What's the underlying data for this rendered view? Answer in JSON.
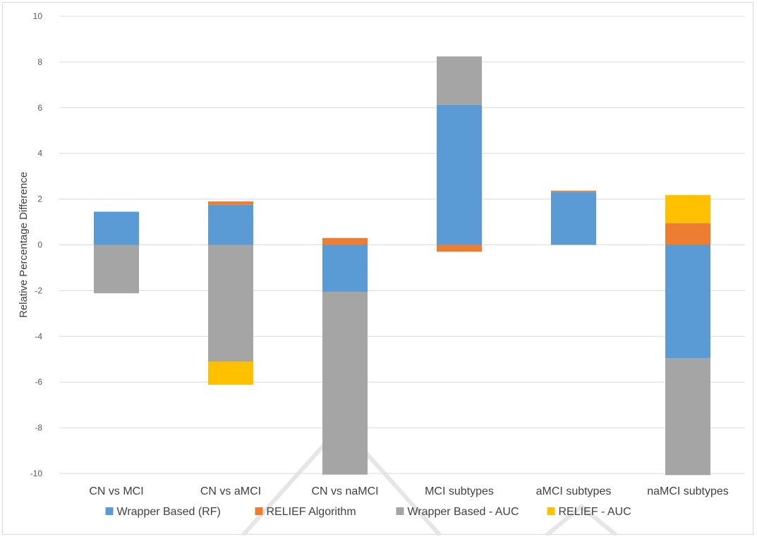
{
  "chart_data": {
    "type": "bar",
    "stacked": true,
    "title": "",
    "xlabel": "",
    "ylabel": "Relative Percentage Difference",
    "ylim": [
      -10,
      10
    ],
    "yticks": [
      10,
      8,
      6,
      4,
      2,
      0,
      -2,
      -4,
      -6,
      -8,
      -10
    ],
    "grid": true,
    "legend_position": "bottom",
    "categories": [
      "CN vs MCI",
      "CN vs aMCI",
      "CN vs naMCI",
      "MCI subtypes",
      "aMCI subtypes",
      "naMCI subtypes"
    ],
    "series": [
      {
        "name": "Wrapper Based (RF)",
        "color": "#5b9bd5",
        "values": [
          1.45,
          1.75,
          -2.05,
          6.12,
          2.32,
          -4.97
        ]
      },
      {
        "name": "RELIEF Algorithm",
        "color": "#ed7d31",
        "values": [
          0.0,
          0.15,
          0.3,
          -0.3,
          0.05,
          0.95
        ]
      },
      {
        "name": "Wrapper Based - AUC",
        "color": "#a5a5a5",
        "values": [
          -2.12,
          -5.1,
          -8.0,
          2.12,
          0.0,
          -5.1
        ]
      },
      {
        "name": "RELIEF - AUC",
        "color": "#ffc000",
        "values": [
          0.0,
          -1.02,
          0.0,
          0.0,
          0.0,
          1.23
        ]
      }
    ]
  }
}
